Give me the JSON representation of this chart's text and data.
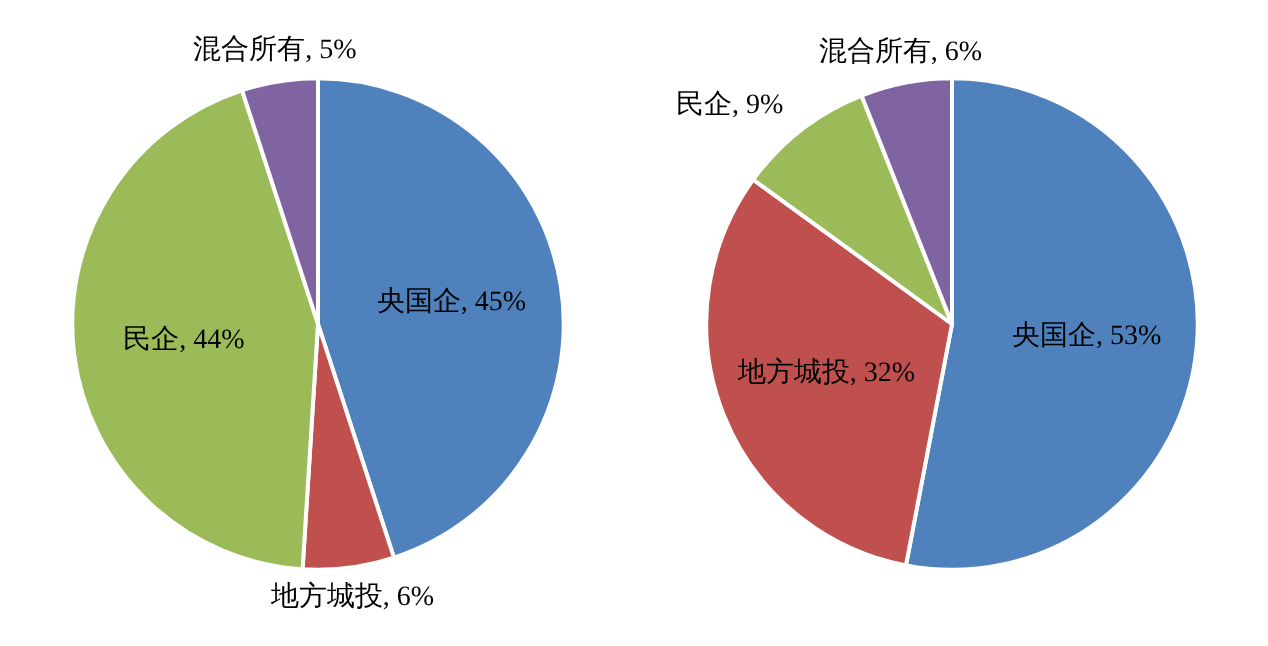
{
  "chart_data": [
    {
      "type": "pie",
      "categories": [
        "央国企",
        "地方城投",
        "民企",
        "混合所有"
      ],
      "values": [
        45,
        6,
        44,
        5
      ],
      "colors": [
        "#4f81bd",
        "#c0504d",
        "#9bbb59",
        "#8064a2"
      ],
      "value_labels": [
        "45%",
        "6%",
        "44%",
        "5%"
      ],
      "legend": false
    },
    {
      "type": "pie",
      "categories": [
        "央国企",
        "地方城投",
        "民企",
        "混合所有"
      ],
      "values": [
        53,
        32,
        9,
        6
      ],
      "colors": [
        "#4f81bd",
        "#c0504d",
        "#9bbb59",
        "#8064a2"
      ],
      "value_labels": [
        "53%",
        "32%",
        "9%",
        "6%"
      ],
      "legend": false
    }
  ]
}
